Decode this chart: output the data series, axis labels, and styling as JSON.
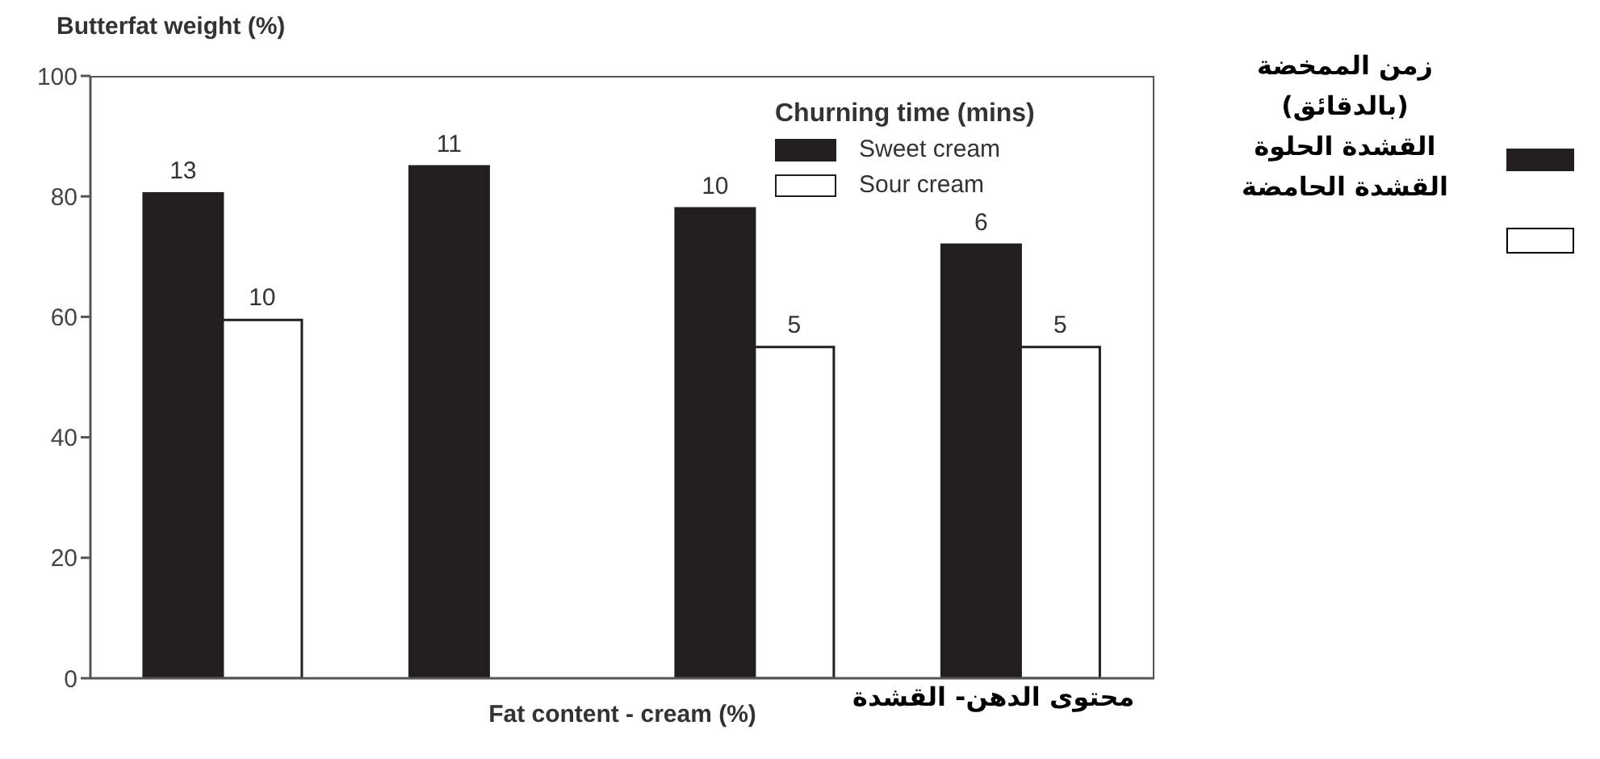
{
  "chart_data": {
    "type": "bar",
    "ylabel": "Butterfat weight (%)",
    "xlabel": "Fat content - cream (%)",
    "legend_title": "Churning time (mins)",
    "categories": [
      null,
      null,
      null,
      null
    ],
    "series": [
      {
        "name": "Sweet cream",
        "color": "#231f20",
        "values": [
          80.5,
          85,
          78,
          72
        ]
      },
      {
        "name": "Sour cream",
        "color": "#ffffff",
        "values": [
          59.5,
          null,
          55,
          55
        ]
      }
    ],
    "ylim": [
      0,
      100
    ],
    "yticks": [
      0,
      20,
      40,
      60,
      80,
      100
    ],
    "legend": "top right",
    "annotations": [
      {
        "text": "13",
        "y": 80.5
      },
      {
        "text": "10",
        "y": 59.5
      },
      {
        "text": "11",
        "y": 85
      },
      {
        "text": "10",
        "y": 78
      },
      {
        "text": "5",
        "y": 55
      },
      {
        "text": "6",
        "y": 72
      },
      {
        "text": "5",
        "y": 55
      },
      "زمن الممخضة (بالدقائق)",
      "القشدة الحلوة",
      "القشدة الحامضة",
      "محتوى الدهن- القشدة"
    ]
  }
}
